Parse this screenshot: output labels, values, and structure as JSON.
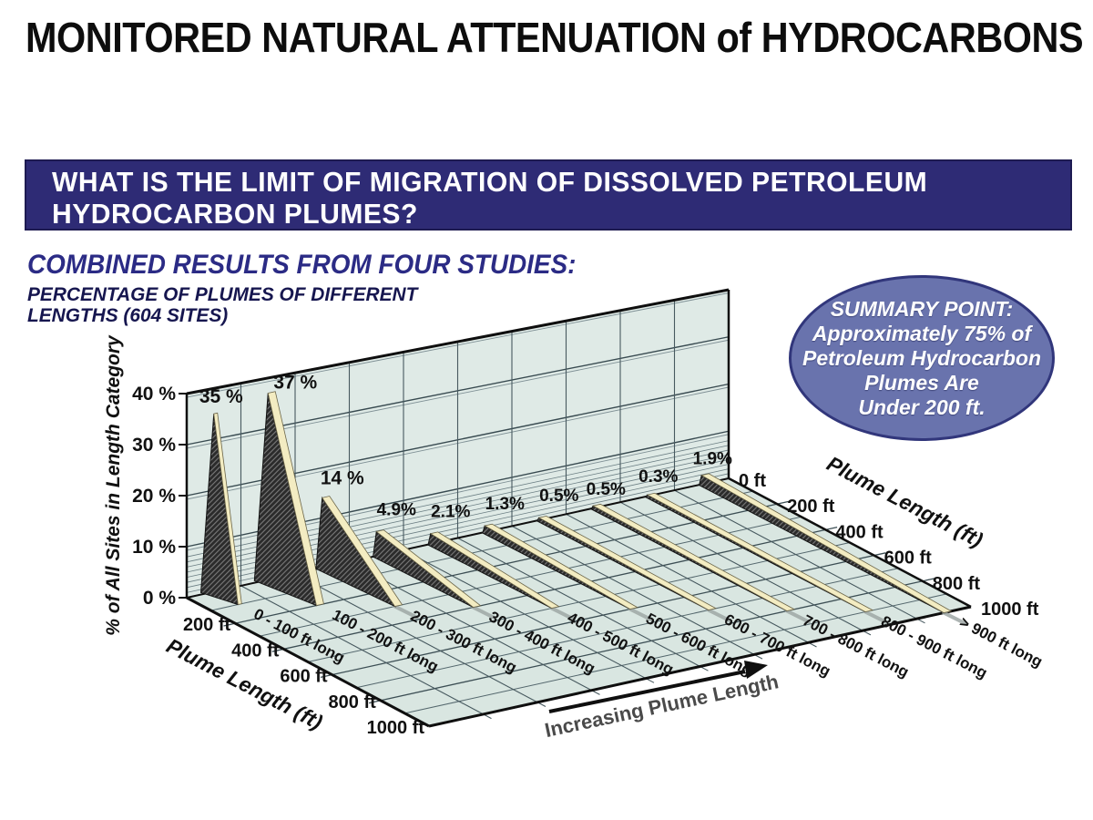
{
  "title": "MONITORED NATURAL ATTENUATION of HYDROCARBONS",
  "question_banner": {
    "line1": "WHAT IS THE LIMIT OF MIGRATION OF DISSOLVED PETROLEUM",
    "line2": "HYDROCARBON PLUMES?",
    "bg_color": "#2E2B75",
    "text_color": "#FFFFFF"
  },
  "heading": "COMBINED RESULTS FROM FOUR STUDIES:",
  "subheading": {
    "line1": "PERCENTAGE OF PLUMES OF DIFFERENT",
    "line2": "LENGTHS (604 SITES)"
  },
  "summary": {
    "lines": [
      "SUMMARY POINT:",
      "Approximately 75% of",
      "Petroleum Hydrocarbon",
      "Plumes Are",
      "Under 200 ft."
    ],
    "fill": "#6973AD",
    "border": "#31367B",
    "text_color": "#FFFFFF"
  },
  "chart_data": {
    "type": "bar",
    "projection": "3d-ribbon",
    "title": "PERCENTAGE OF PLUMES OF DIFFERENT LENGTHS (604 SITES)",
    "categories": [
      "0 - 100 ft long",
      "100 - 200 ft long",
      "200 - 300 ft long",
      "300 - 400 ft long",
      "400 - 500 ft long",
      "500 - 600 ft long",
      "600 - 700 ft long",
      "700 - 800 ft long",
      "800 - 900 ft long",
      "> 900 ft long"
    ],
    "values": [
      35,
      37,
      14,
      4.9,
      2.1,
      1.3,
      0.5,
      0.5,
      0.3,
      1.9
    ],
    "value_labels": [
      "35 %",
      "37 %",
      "14 %",
      "4.9%",
      "2.1%",
      "1.3%",
      "0.5%",
      "0.5%",
      "0.3%",
      "1.9%"
    ],
    "category_depth_ft": [
      100,
      200,
      300,
      400,
      500,
      600,
      700,
      800,
      900,
      1000
    ],
    "ylabel": "% of All Sites in Length Category",
    "ylim": [
      0,
      40
    ],
    "ytick_values": [
      0,
      10,
      20,
      30,
      40
    ],
    "ytick_labels": [
      "0 %",
      "10 %",
      "20 %",
      "30 %",
      "40 %"
    ],
    "depth_label": "Plume Length (ft)",
    "depth_range_ft": [
      0,
      1000
    ],
    "depth_ticks_left": [
      {
        "ft": 200,
        "label": "200 ft"
      },
      {
        "ft": 400,
        "label": "400 ft"
      },
      {
        "ft": 600,
        "label": "600 ft"
      },
      {
        "ft": 800,
        "label": "800 ft"
      },
      {
        "ft": 1000,
        "label": "1000 ft"
      }
    ],
    "depth_ticks_right": [
      {
        "ft": 0,
        "label": "0 ft"
      },
      {
        "ft": 200,
        "label": "200 ft"
      },
      {
        "ft": 400,
        "label": "400 ft"
      },
      {
        "ft": 600,
        "label": "600 ft"
      },
      {
        "ft": 800,
        "label": "800 ft"
      },
      {
        "ft": 1000,
        "label": "1000 ft"
      }
    ],
    "arrow_label": "Increasing Plume Length",
    "grid": true,
    "legend": "none",
    "colors": {
      "wall": "#DFEAE6",
      "floor": "#D9E6E1",
      "grid_major": "#384A50",
      "grid_minor": "#6B7E83",
      "fin_face": "#2B2B2B",
      "fin_hatch": "#7A7A7A",
      "fin_top": "#F3ECC2",
      "tip_shadow": "#9FA8A6",
      "text": "#111111",
      "arrow_text": "#4A4A4A"
    }
  }
}
